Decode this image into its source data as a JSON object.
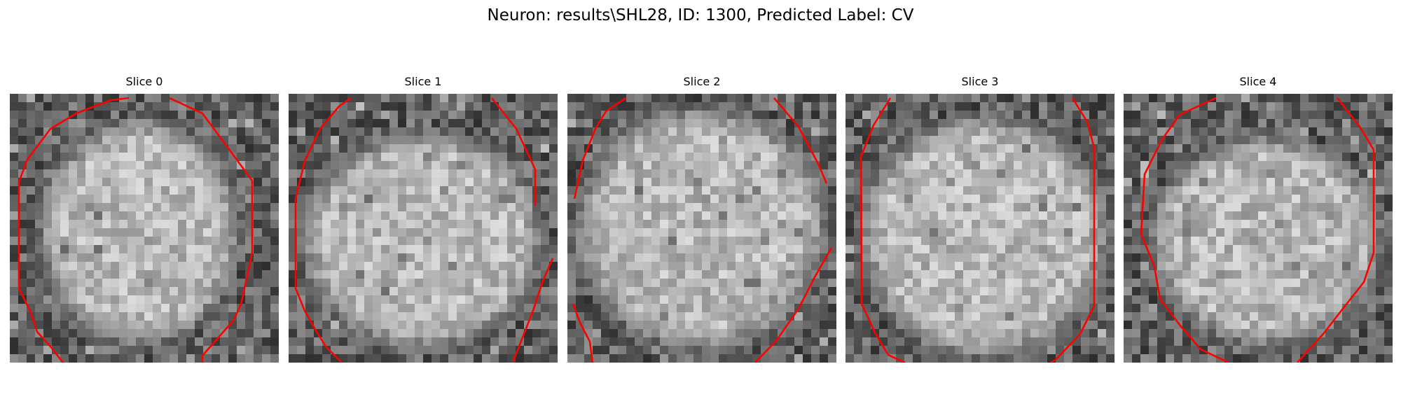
{
  "title": "Neuron: results\\SHL28, ID: 1300, Predicted Label: CV",
  "slices": [
    {
      "label": "Slice 0"
    },
    {
      "label": "Slice 1"
    },
    {
      "label": "Slice 2"
    },
    {
      "label": "Slice 3"
    },
    {
      "label": "Slice 4"
    }
  ],
  "colors": {
    "contour": "#ff0000",
    "background": "#ffffff"
  }
}
